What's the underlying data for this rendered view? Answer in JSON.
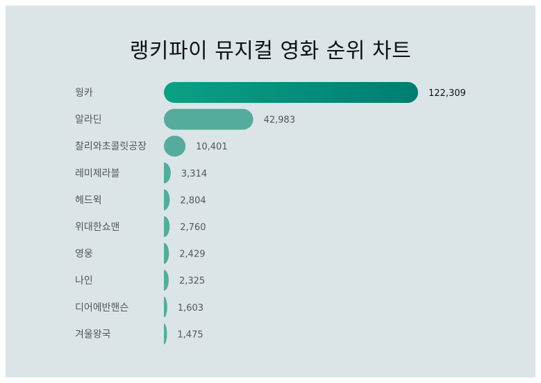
{
  "title": "랭키파이 뮤지컬 영화 순위 차트",
  "colors": {
    "panel": "#dbe5e8",
    "top_bar_start": "#0aa184",
    "top_bar_end": "#007d72",
    "bar": "#55ab9c",
    "label_text": "#555555",
    "top_value_text": "#111111",
    "value_text": "#555555"
  },
  "chart_data": {
    "type": "bar",
    "orientation": "horizontal",
    "title": "랭키파이 뮤지컬 영화 순위 차트",
    "categories": [
      "웡카",
      "알라딘",
      "찰리와초콜릿공장",
      "레미제라블",
      "헤드윅",
      "위대한쇼맨",
      "영웅",
      "나인",
      "디어에반핸슨",
      "겨울왕국"
    ],
    "values": [
      122309,
      42983,
      10401,
      3314,
      2804,
      2760,
      2429,
      2325,
      1603,
      1475
    ],
    "value_labels": [
      "122,309",
      "42,983",
      "10,401",
      "3,314",
      "2,804",
      "2,760",
      "2,429",
      "2,325",
      "1,603",
      "1,475"
    ],
    "xlim": [
      0,
      122309
    ],
    "grid": false,
    "legend": "none"
  }
}
